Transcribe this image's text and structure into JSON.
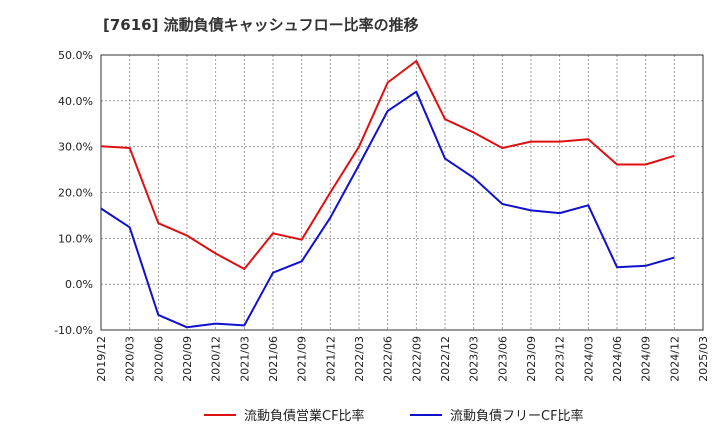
{
  "chart_data": {
    "type": "line",
    "title": "[7616]  流動負債キャッシュフロー比率の推移",
    "xlabel": "",
    "ylabel": "",
    "categories": [
      "2019/12",
      "2020/03",
      "2020/06",
      "2020/09",
      "2020/12",
      "2021/03",
      "2021/06",
      "2021/09",
      "2021/12",
      "2022/03",
      "2022/06",
      "2022/09",
      "2022/12",
      "2023/03",
      "2023/06",
      "2023/09",
      "2023/12",
      "2024/03",
      "2024/06",
      "2024/09",
      "2024/12",
      "2025/03"
    ],
    "ylim": [
      -10,
      50
    ],
    "yticks": [
      -10,
      0,
      10,
      20,
      30,
      40,
      50
    ],
    "ytick_labels": [
      "-10.0%",
      "0.0%",
      "10.0%",
      "20.0%",
      "30.0%",
      "40.0%",
      "50.0%"
    ],
    "grid": true,
    "legend_position": "bottom",
    "series": [
      {
        "name": "流動負債営業CF比率",
        "color": "#dd1111",
        "values": [
          30.1,
          29.7,
          13.3,
          10.6,
          6.7,
          3.3,
          11.1,
          9.7,
          20.0,
          30.0,
          44.0,
          48.7,
          36.0,
          33.1,
          29.7,
          31.1,
          31.1,
          31.6,
          26.1,
          26.1,
          28.0,
          null
        ]
      },
      {
        "name": "流動負債フリーCF比率",
        "color": "#1111cc",
        "values": [
          16.5,
          12.4,
          -6.7,
          -9.4,
          -8.6,
          -9.0,
          2.5,
          5.0,
          14.5,
          26.0,
          37.8,
          42.0,
          27.4,
          23.2,
          17.5,
          16.1,
          15.5,
          17.2,
          3.7,
          4.0,
          5.8,
          null
        ]
      }
    ]
  }
}
